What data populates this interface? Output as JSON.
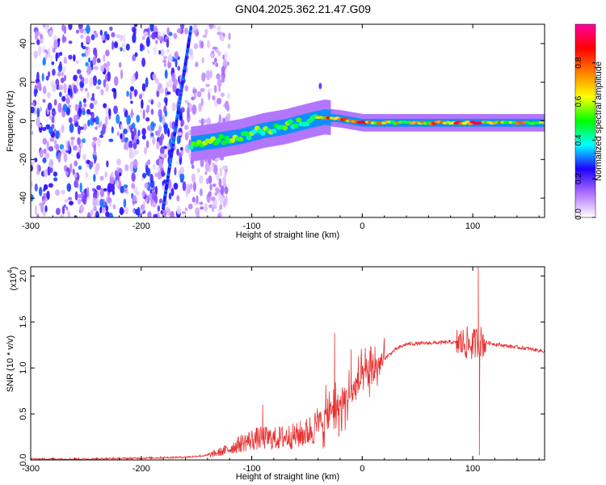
{
  "title": "GN04.2025.362.21.47.G09",
  "chart_data": [
    {
      "type": "heatmap",
      "name": "spectrogram",
      "xlabel": "Height of straight line (km)",
      "ylabel": "Frequency (Hz)",
      "xlim": [
        -300,
        165
      ],
      "ylim": [
        -50,
        50
      ],
      "xticks": [
        -300,
        -200,
        -100,
        0,
        100
      ],
      "xtick_labels": [
        "-300",
        "-200",
        "-100",
        "0",
        "100"
      ],
      "yticks": [
        -40,
        -20,
        0,
        20,
        40
      ],
      "ytick_labels": [
        "-40",
        "-20",
        "0",
        "20",
        "40"
      ],
      "colorbar": {
        "label": "Normalized spectral amplitude",
        "range": [
          0,
          1
        ],
        "ticks": [
          0.0,
          0.2,
          0.4,
          0.6,
          0.8
        ],
        "tick_labels": [
          "0.0",
          "0.2",
          "0.4",
          "0.6",
          "0.8"
        ],
        "colors": [
          "#ffffff",
          "#b070ff",
          "#2000ff",
          "#00ffff",
          "#00ff00",
          "#ffff00",
          "#ff8000",
          "#ff0000",
          "#ff00a0"
        ]
      },
      "features": {
        "noise_region_x": [
          -300,
          -130
        ],
        "main_track": {
          "x": [
            -155,
            -130,
            -110,
            -90,
            -70,
            -50,
            -35,
            -20,
            0,
            20,
            40,
            60,
            80,
            100,
            120,
            140,
            165
          ],
          "y": [
            -12,
            -10,
            -8,
            -5,
            -3,
            0,
            2,
            1,
            -1,
            -1,
            -1,
            -1,
            -1,
            -1,
            -1,
            -1,
            -1
          ]
        },
        "diagonal_line": {
          "x": [
            -180,
            -155
          ],
          "y": [
            -45,
            48
          ]
        }
      }
    },
    {
      "type": "line",
      "name": "snr",
      "xlabel": "Height of straight line (km)",
      "ylabel": "SNR (10 * v/v)",
      "yscale_label": "(x10",
      "yscale_exp": "4",
      "xlim": [
        -300,
        165
      ],
      "ylim": [
        0,
        2.1
      ],
      "xticks": [
        -300,
        -200,
        -100,
        0,
        100
      ],
      "xtick_labels": [
        "-300",
        "-200",
        "-100",
        "0",
        "100"
      ],
      "yticks": [
        0.0,
        0.5,
        1.0,
        1.5,
        2.0
      ],
      "ytick_labels": [
        "0.0",
        "0.5",
        "1.0",
        "1.5",
        "2.0"
      ],
      "color": "#e83030",
      "x": [
        -300,
        -250,
        -200,
        -160,
        -140,
        -130,
        -120,
        -110,
        -100,
        -90,
        -80,
        -70,
        -60,
        -50,
        -40,
        -30,
        -20,
        -10,
        0,
        10,
        20,
        30,
        40,
        60,
        80,
        90,
        100,
        105,
        110,
        130,
        150,
        165
      ],
      "y": [
        0.01,
        0.01,
        0.02,
        0.03,
        0.05,
        0.08,
        0.12,
        0.18,
        0.22,
        0.24,
        0.23,
        0.25,
        0.26,
        0.3,
        0.38,
        0.5,
        0.6,
        0.72,
        0.88,
        0.98,
        1.1,
        1.2,
        1.26,
        1.27,
        1.28,
        1.27,
        1.25,
        1.3,
        1.28,
        1.24,
        1.21,
        1.18
      ],
      "spikes": [
        {
          "x": -90,
          "y": 0.6
        },
        {
          "x": -25,
          "y": 1.38
        },
        {
          "x": -10,
          "y": 1.2
        },
        {
          "x": 15,
          "y": 1.0
        },
        {
          "x": 95,
          "y": 1.45
        },
        {
          "x": 105,
          "y": 2.1
        },
        {
          "x": 106,
          "y": 0.05
        }
      ]
    }
  ]
}
